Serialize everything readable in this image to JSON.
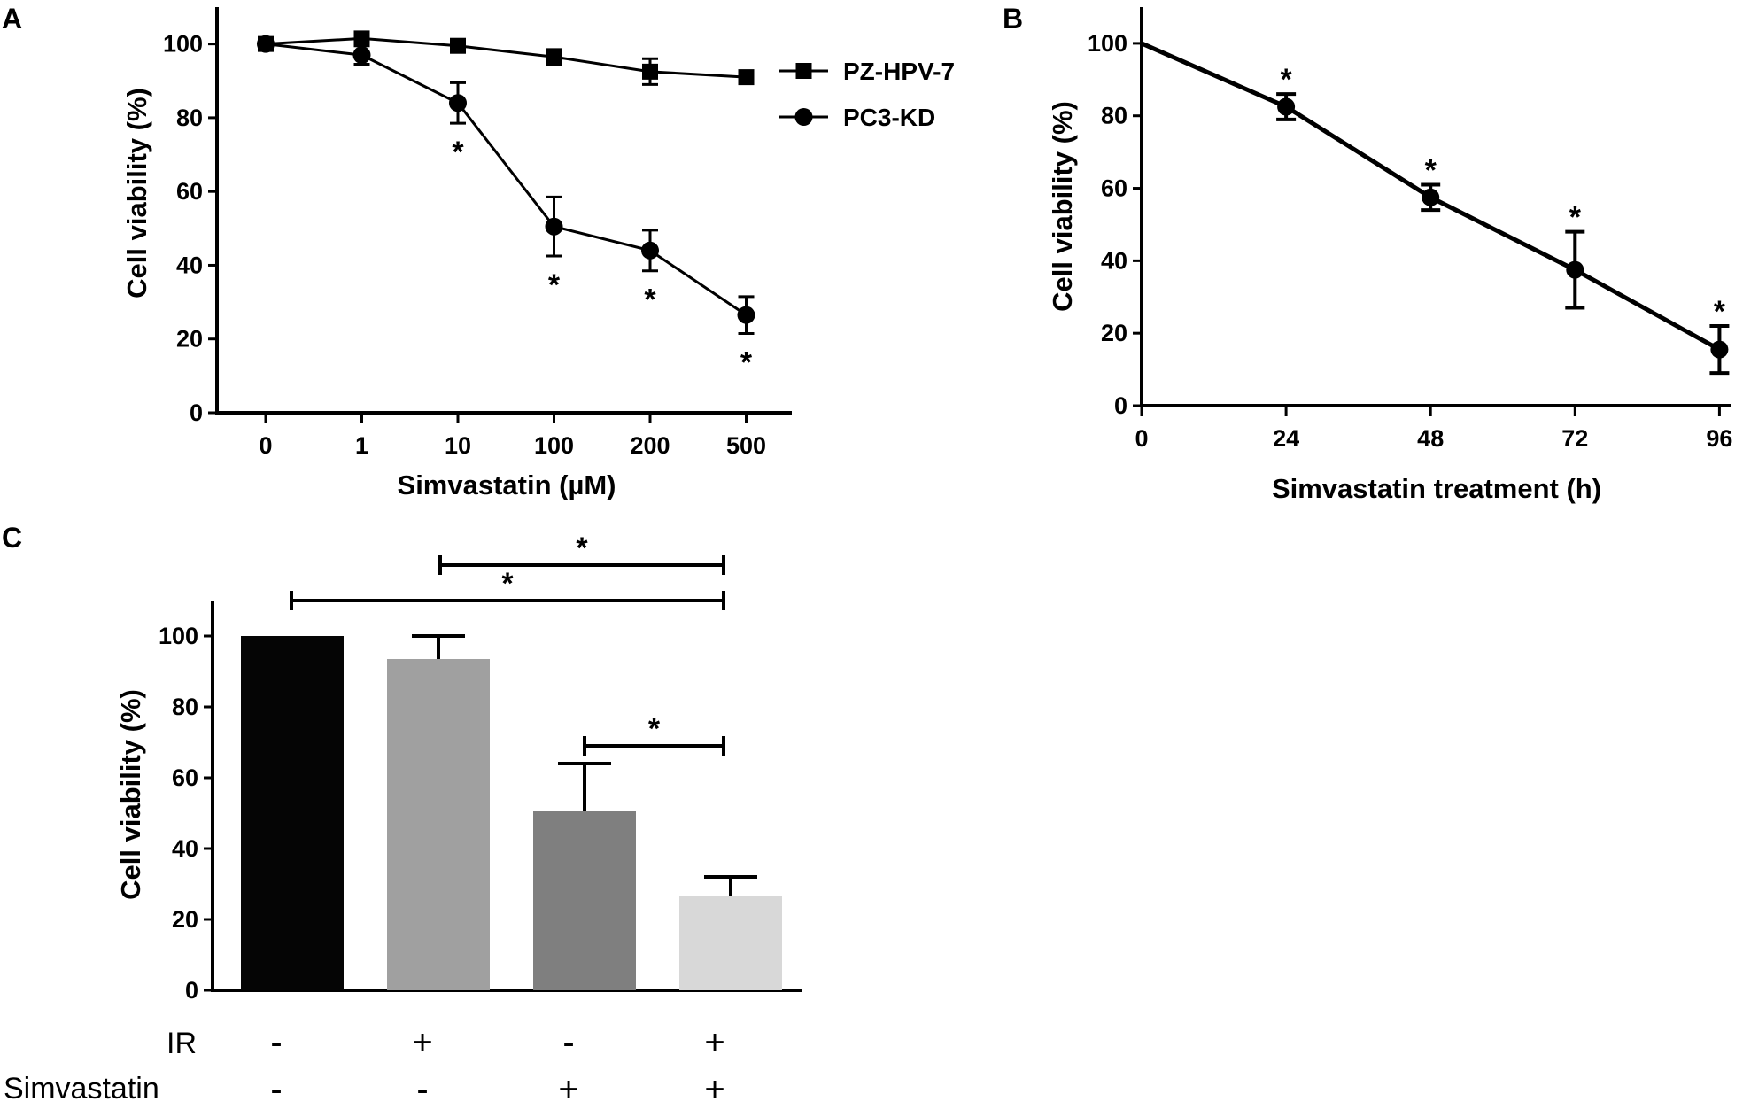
{
  "chart_data": [
    {
      "panel": "A",
      "type": "line",
      "xlabel": "Simvastatin (µM)",
      "ylabel": "Cell viability (%)",
      "categories": [
        "0",
        "1",
        "10",
        "100",
        "200",
        "500"
      ],
      "ylim": [
        0,
        110
      ],
      "yticks": [
        "0",
        "20",
        "40",
        "60",
        "80",
        "100"
      ],
      "legend_position": "top-right",
      "series": [
        {
          "name": "PZ-HPV-7",
          "marker": "square",
          "values": [
            100,
            101.5,
            99.5,
            96.5,
            92.5,
            91
          ],
          "errors": [
            0.5,
            1.5,
            1,
            2,
            3.5,
            1.5
          ]
        },
        {
          "name": "PC3-KD",
          "marker": "circle",
          "values": [
            100,
            97,
            84,
            50.5,
            44,
            26.5
          ],
          "errors": [
            0.5,
            2.5,
            5.5,
            8,
            5.5,
            5
          ]
        }
      ],
      "significance": [
        {
          "category": "10",
          "label": "*"
        },
        {
          "category": "100",
          "label": "*"
        },
        {
          "category": "200",
          "label": "*"
        },
        {
          "category": "500",
          "label": "*"
        }
      ]
    },
    {
      "panel": "B",
      "type": "line",
      "xlabel": "Simvastatin treatment (h)",
      "ylabel": "Cell viability (%)",
      "x": [
        0,
        24,
        48,
        72,
        96
      ],
      "xticks": [
        "0",
        "24",
        "48",
        "72",
        "96"
      ],
      "xlim": [
        0,
        98
      ],
      "ylim": [
        0,
        110
      ],
      "yticks": [
        "0",
        "20",
        "40",
        "60",
        "80",
        "100"
      ],
      "series": [
        {
          "name": "",
          "marker": "circle",
          "x": [
            0,
            24,
            48,
            72,
            96
          ],
          "values": [
            100,
            82.5,
            57.5,
            37.5,
            15.5
          ],
          "errors": [
            0,
            3.5,
            3.5,
            10.5,
            6.5
          ]
        }
      ],
      "significance": [
        {
          "x": 24,
          "label": "*"
        },
        {
          "x": 48,
          "label": "*"
        },
        {
          "x": 72,
          "label": "*"
        },
        {
          "x": 96,
          "label": "*"
        }
      ]
    },
    {
      "panel": "C",
      "type": "bar",
      "ylabel": "Cell viability (%)",
      "ylim": [
        0,
        110
      ],
      "yticks": [
        "0",
        "20",
        "40",
        "60",
        "80",
        "100"
      ],
      "values": [
        100,
        93.5,
        50.5,
        26.5
      ],
      "errors": [
        0,
        6.5,
        13.5,
        5.5
      ],
      "bar_colors": [
        "#050505",
        "#a0a0a0",
        "#7f7f7f",
        "#d8d8d8"
      ],
      "conditions": [
        {
          "name": "IR",
          "signs": [
            "-",
            "+",
            "-",
            "+"
          ]
        },
        {
          "name": "Simvastatin",
          "signs": [
            "-",
            "-",
            "+",
            "+"
          ]
        }
      ],
      "comparisons": [
        {
          "from": 0,
          "to": 3,
          "label": "*"
        },
        {
          "from": 1,
          "to": 3,
          "label": "*"
        },
        {
          "from": 2,
          "to": 3,
          "label": "*"
        }
      ]
    }
  ]
}
